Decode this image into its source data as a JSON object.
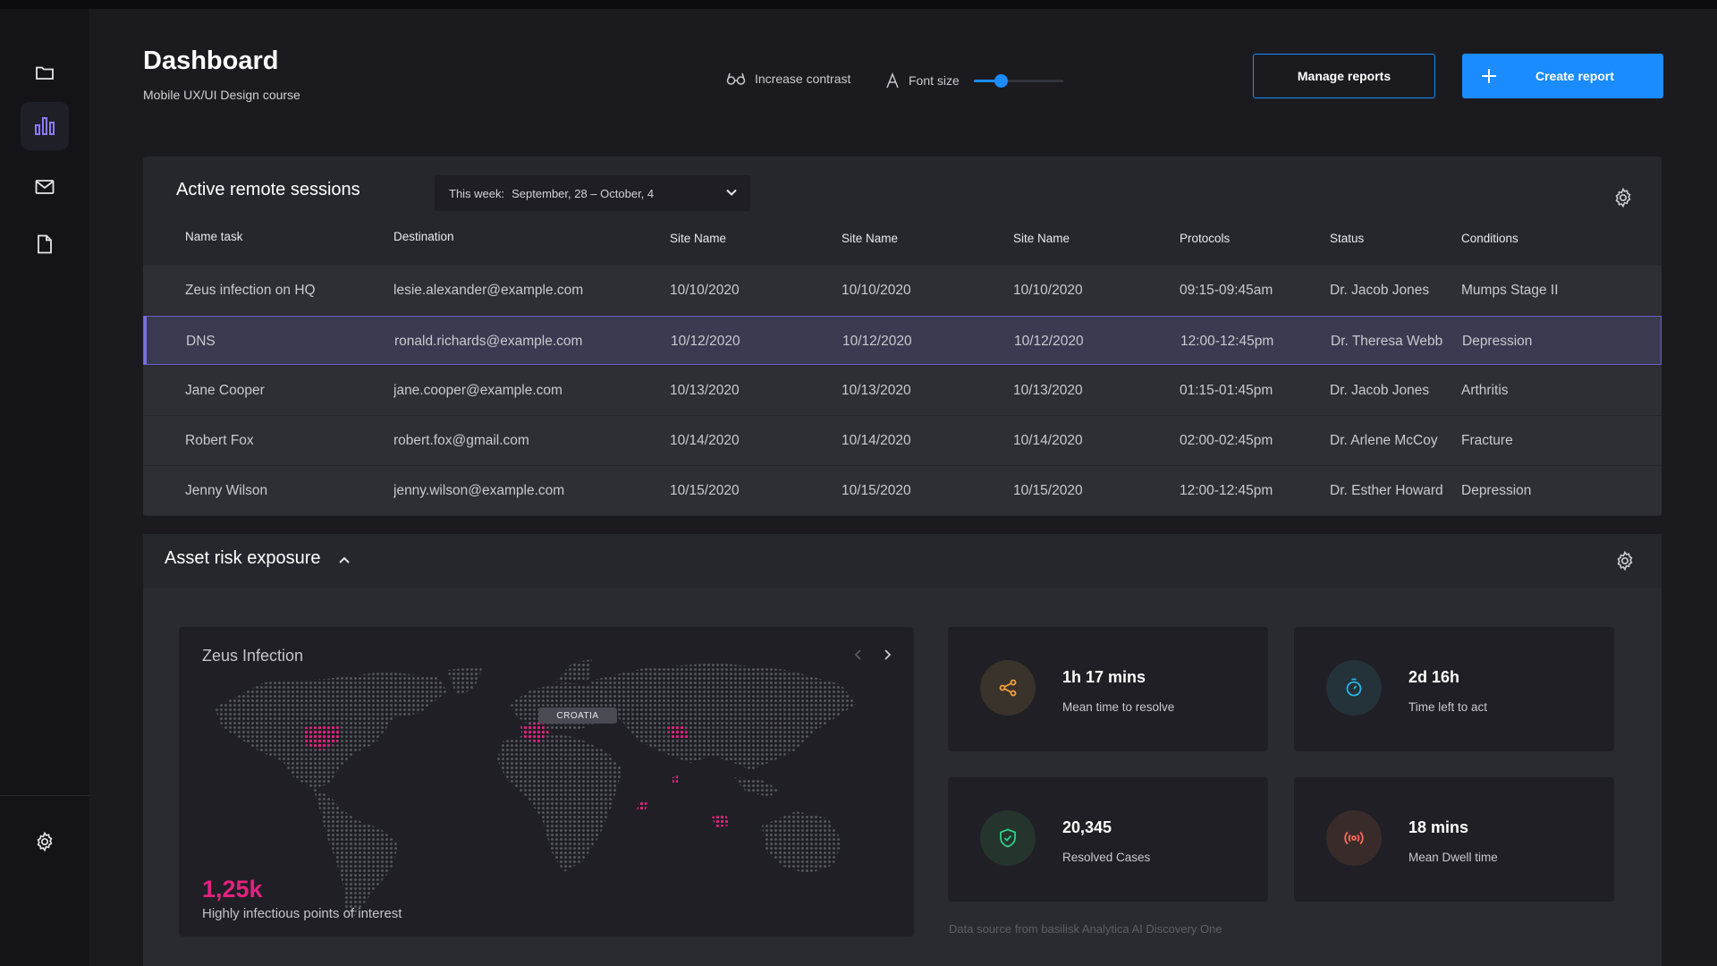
{
  "header": {
    "title": "Dashboard",
    "subtitle": "Mobile UX/UI Design course",
    "contrast_label": "Increase contrast",
    "font_size_label": "Font size",
    "font_size_level": 0.3,
    "manage_label": "Manage reports",
    "create_label": "Create report"
  },
  "sidebar": {
    "items": [
      {
        "icon": "folder-icon"
      },
      {
        "icon": "bar-chart-icon",
        "active": true
      },
      {
        "icon": "mail-icon"
      },
      {
        "icon": "document-icon"
      },
      {
        "icon": "gear-icon"
      }
    ]
  },
  "sessions": {
    "title": "Active remote sessions",
    "week_label": "This week:",
    "week_value": "September, 28 – October, 4",
    "columns": [
      "Name task",
      "Destination",
      "Site Name",
      "Site Name",
      "Site Name",
      "Protocols",
      "Status",
      "Conditions"
    ],
    "rows": [
      [
        "Zeus infection on HQ",
        "lesie.alexander@example.com",
        "10/10/2020",
        "10/10/2020",
        "10/10/2020",
        "09:15-09:45am",
        "Dr. Jacob Jones",
        "Mumps Stage II"
      ],
      [
        "DNS",
        "ronald.richards@example.com",
        "10/12/2020",
        "10/12/2020",
        "10/12/2020",
        "12:00-12:45pm",
        "Dr. Theresa Webb",
        "Depression"
      ],
      [
        "Jane Cooper",
        "jane.cooper@example.com",
        "10/13/2020",
        "10/13/2020",
        "10/13/2020",
        "01:15-01:45pm",
        "Dr. Jacob Jones",
        "Arthritis"
      ],
      [
        "Robert Fox",
        "robert.fox@gmail.com",
        "10/14/2020",
        "10/14/2020",
        "10/14/2020",
        "02:00-02:45pm",
        "Dr. Arlene McCoy",
        "Fracture"
      ],
      [
        "Jenny Wilson",
        "jenny.wilson@example.com",
        "10/15/2020",
        "10/15/2020",
        "10/15/2020",
        "12:00-12:45pm",
        "Dr. Esther Howard",
        "Depression"
      ]
    ],
    "selected_row": 1
  },
  "risk": {
    "title": "Asset risk exposure",
    "map": {
      "title": "Zeus Infection",
      "tag": "CROATIA",
      "big_value": "1,25k",
      "caption": "Highly infectious points of interest"
    },
    "stats": [
      {
        "value": "1h 17 mins",
        "label": "Mean time to resolve",
        "icon": "share-nodes-icon",
        "color": "#f2a33a",
        "bg": "#3a332b"
      },
      {
        "value": "2d 16h",
        "label": "Time left to act",
        "icon": "timer-icon",
        "color": "#2ab4e6",
        "bg": "#24323a"
      },
      {
        "value": "20,345",
        "label": "Resolved Cases",
        "icon": "shield-check-icon",
        "color": "#2fd08a",
        "bg": "#25342d"
      },
      {
        "value": "18 mins",
        "label": "Mean Dwell time",
        "icon": "broadcast-icon",
        "color": "#ff6b5a",
        "bg": "#3a2b2b"
      }
    ],
    "source": "Data source from basilisk Analytica AI Discovery One"
  },
  "colors": {
    "accent": "#1a8cff",
    "selected_row": "#3a3a50",
    "hotspot": "#e3227f"
  }
}
